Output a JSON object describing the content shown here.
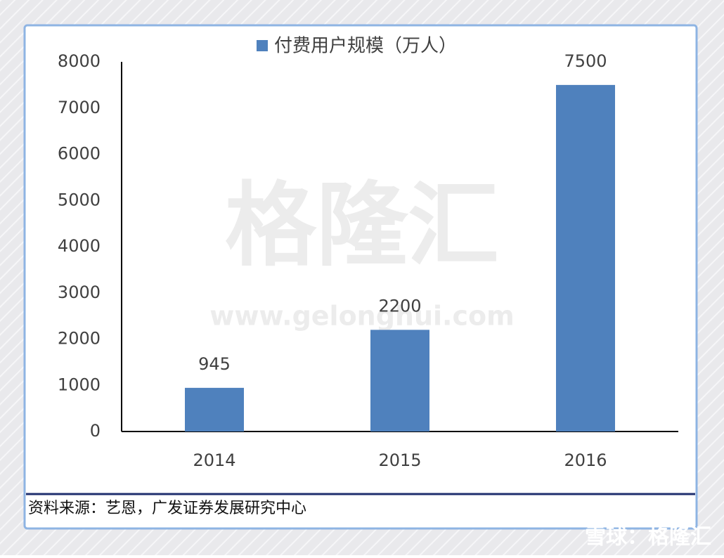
{
  "chart_data": {
    "type": "bar",
    "categories": [
      "2014",
      "2015",
      "2016"
    ],
    "series": [
      {
        "name": "付费用户规模（万人）",
        "color": "#4f81bd",
        "values": [
          945,
          2200,
          7500
        ]
      }
    ],
    "ylim": [
      0,
      8000
    ],
    "yticks": [
      0,
      1000,
      2000,
      3000,
      4000,
      5000,
      6000,
      7000,
      8000
    ],
    "grid": false,
    "legend": "top",
    "source": "资料来源：艺恩，广发证券发展研究中心"
  },
  "watermark": {
    "logo": "格隆汇",
    "url": "www.gelonghui.com",
    "corner": "雪球：格隆汇"
  }
}
